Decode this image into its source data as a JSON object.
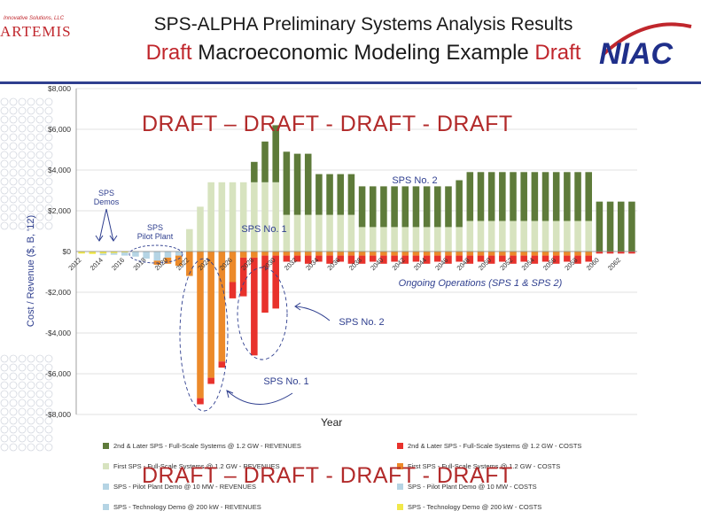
{
  "header": {
    "title_line1": "SPS-ALPHA Preliminary Systems Analysis Results",
    "title_line2_a": "Draft",
    "title_line2_b": " Macroeconomic Modeling Example ",
    "title_line2_c": "Draft",
    "logo_left_tagline": "Innovative Solutions, LLC",
    "logo_left_name": "ARTEMIS",
    "logo_right_text": "NIAC"
  },
  "colors": {
    "later_rev": "#5e7b3a",
    "first_rev": "#d7e3bf",
    "later_cost": "#e8322c",
    "first_cost": "#ec8a2a",
    "pilot_rev": "#b5d4e4",
    "tech_cost": "#f1e84a",
    "accent_blue": "#2f3f8f",
    "watermark_red": "#b22a2a"
  },
  "watermarks": {
    "top": "DRAFT – DRAFT - DRAFT  - DRAFT",
    "bottom": "DRAFT – DRAFT - DRAFT  - DRAFT"
  },
  "chart_data": {
    "type": "bar",
    "stacked": true,
    "xlabel": "Year",
    "ylabel": "Cost / Revenue ($, B, '12)",
    "ylim": [
      -8000,
      8000
    ],
    "yticks": [
      8000,
      6000,
      4000,
      2000,
      0,
      -2000,
      -4000,
      -6000,
      -8000
    ],
    "ytick_labels": [
      "$8,000",
      "$6,000",
      "$4,000",
      "$2,000",
      "$0",
      "-$2,000",
      "-$4,000",
      "-$6,000",
      "-$8,000"
    ],
    "grid": true,
    "legend_position": "bottom",
    "x": [
      2012,
      2013,
      2014,
      2015,
      2016,
      2017,
      2018,
      2019,
      2020,
      2021,
      2022,
      2023,
      2024,
      2025,
      2026,
      2027,
      2028,
      2029,
      2030,
      2031,
      2032,
      2033,
      2034,
      2035,
      2036,
      2037,
      2038,
      2039,
      2040,
      2041,
      2042,
      2043,
      2044,
      2045,
      2046,
      2047,
      2048,
      2049,
      2050,
      2051,
      2052,
      2053,
      2054,
      2055,
      2056,
      2057,
      2058,
      2059,
      2060,
      2061,
      2062,
      2063
    ],
    "xtick_labels": [
      "2012",
      "2014",
      "2016",
      "2018",
      "2020",
      "2022",
      "2024",
      "2026",
      "2028",
      "2030",
      "2032",
      "2034",
      "2036",
      "2038",
      "2040",
      "2042",
      "2044",
      "2046",
      "2048",
      "2050",
      "2052",
      "2054",
      "2056",
      "2058",
      "2060",
      "2062"
    ],
    "series": [
      {
        "name": "2nd & Later SPS - Full-Scale Systems @ 1.2 GW  - REVENUES",
        "key": "later_rev",
        "values": [
          0,
          0,
          0,
          0,
          0,
          0,
          0,
          0,
          0,
          0,
          0,
          0,
          0,
          0,
          0,
          0,
          1000,
          2000,
          2800,
          3100,
          3000,
          3000,
          2000,
          2000,
          2000,
          2000,
          2000,
          2000,
          2000,
          2000,
          2000,
          2000,
          2000,
          2000,
          2000,
          2300,
          2400,
          2400,
          2400,
          2400,
          2400,
          2400,
          2400,
          2400,
          2400,
          2400,
          2400,
          2400,
          2450,
          2450,
          2450,
          2450
        ]
      },
      {
        "name": "First SPS - Full-Scale Systems @ 1.2 GW - REVENUES",
        "key": "first_rev",
        "values": [
          0,
          0,
          0,
          0,
          0,
          0,
          0,
          0,
          0,
          0,
          1100,
          2200,
          3400,
          3400,
          3400,
          3400,
          3400,
          3400,
          3400,
          1800,
          1800,
          1800,
          1800,
          1800,
          1800,
          1800,
          1200,
          1200,
          1200,
          1200,
          1200,
          1200,
          1200,
          1200,
          1200,
          1200,
          1500,
          1500,
          1500,
          1500,
          1500,
          1500,
          1500,
          1500,
          1500,
          1500,
          1500,
          1500,
          0,
          0,
          0,
          0
        ]
      },
      {
        "name": "SPS - Pilot Plant Demo @ 10 MW - REVENUES",
        "key": "pilot_rev",
        "values": [
          0,
          0,
          0,
          0,
          0,
          0,
          0,
          0,
          0,
          0,
          0,
          0,
          0,
          0,
          0,
          0,
          0,
          0,
          0,
          0,
          0,
          0,
          0,
          0,
          0,
          0,
          0,
          0,
          0,
          0,
          0,
          0,
          0,
          0,
          0,
          0,
          0,
          0,
          0,
          0,
          0,
          0,
          0,
          0,
          0,
          0,
          0,
          0,
          0,
          0,
          0,
          0
        ]
      },
      {
        "name": "SPS - Technology Demo @ 200 kW - REVENUES",
        "key": "tech_rev",
        "values": [
          0,
          0,
          0,
          0,
          0,
          0,
          0,
          0,
          0,
          0,
          0,
          0,
          0,
          0,
          0,
          0,
          0,
          0,
          0,
          0,
          0,
          0,
          0,
          0,
          0,
          0,
          0,
          0,
          0,
          0,
          0,
          0,
          0,
          0,
          0,
          0,
          0,
          0,
          0,
          0,
          0,
          0,
          0,
          0,
          0,
          0,
          0,
          0,
          0,
          0,
          0,
          0
        ]
      },
      {
        "name": "2nd & Later SPS - Full-Scale Systems @ 1.2 GW  - COSTS",
        "key": "later_cost",
        "values": [
          0,
          0,
          0,
          0,
          0,
          0,
          0,
          0,
          0,
          0,
          0,
          -300,
          -300,
          -300,
          -800,
          -1900,
          -4800,
          -2800,
          -2600,
          -300,
          -300,
          -400,
          -300,
          -400,
          -300,
          -400,
          -400,
          -300,
          -400,
          -300,
          -400,
          -300,
          -400,
          -300,
          -400,
          -300,
          -400,
          -300,
          -400,
          -300,
          -400,
          -300,
          -400,
          -300,
          -400,
          -300,
          -400,
          -300,
          -100,
          -100,
          -100,
          -100
        ]
      },
      {
        "name": "First SPS - Full-Scale Systems @ 1.2 GW - COSTS",
        "key": "first_cost",
        "values": [
          0,
          0,
          0,
          0,
          0,
          0,
          0,
          -200,
          -300,
          -500,
          -1200,
          -7200,
          -6200,
          -5400,
          -1500,
          -300,
          -300,
          -200,
          -200,
          -200,
          -200,
          -200,
          -200,
          -200,
          -200,
          -200,
          -200,
          -200,
          -200,
          -200,
          -200,
          -200,
          -200,
          -200,
          -200,
          -200,
          -200,
          -200,
          -200,
          -200,
          -200,
          -200,
          -200,
          -200,
          -200,
          -200,
          -200,
          -200,
          0,
          0,
          0,
          0
        ]
      },
      {
        "name": "SPS - Pilot Plant Demo @ 10 MW - COSTS",
        "key": "pilot_cost",
        "values": [
          0,
          0,
          -80,
          -80,
          -150,
          -250,
          -350,
          -450,
          -300,
          -200,
          0,
          0,
          0,
          0,
          0,
          0,
          0,
          0,
          0,
          0,
          0,
          0,
          0,
          0,
          0,
          0,
          0,
          0,
          0,
          0,
          0,
          0,
          0,
          0,
          0,
          0,
          0,
          0,
          0,
          0,
          0,
          0,
          0,
          0,
          0,
          0,
          0,
          0,
          0,
          0,
          0,
          0
        ]
      },
      {
        "name": "SPS - Technology Demo @ 200 kW - COSTS",
        "key": "tech_cost",
        "values": [
          -100,
          -120,
          -100,
          -80,
          -50,
          0,
          0,
          0,
          0,
          0,
          0,
          0,
          0,
          0,
          0,
          0,
          0,
          0,
          0,
          0,
          0,
          0,
          0,
          0,
          0,
          0,
          0,
          0,
          0,
          0,
          0,
          0,
          0,
          0,
          0,
          0,
          0,
          0,
          0,
          0,
          0,
          0,
          0,
          0,
          0,
          0,
          0,
          0,
          0,
          0,
          0,
          0
        ]
      }
    ],
    "annotations": {
      "sps_demos": [
        "SPS",
        "Demos"
      ],
      "sps_pilot": [
        "SPS",
        "Pilot Plant"
      ],
      "sps_no1_top": "SPS No. 1",
      "sps_no2_top": "SPS No. 2",
      "ongoing": "Ongoing Operations (SPS 1 & SPS 2)",
      "sps_no2_callout": "SPS No. 2",
      "sps_no1_callout": "SPS No. 1"
    }
  }
}
